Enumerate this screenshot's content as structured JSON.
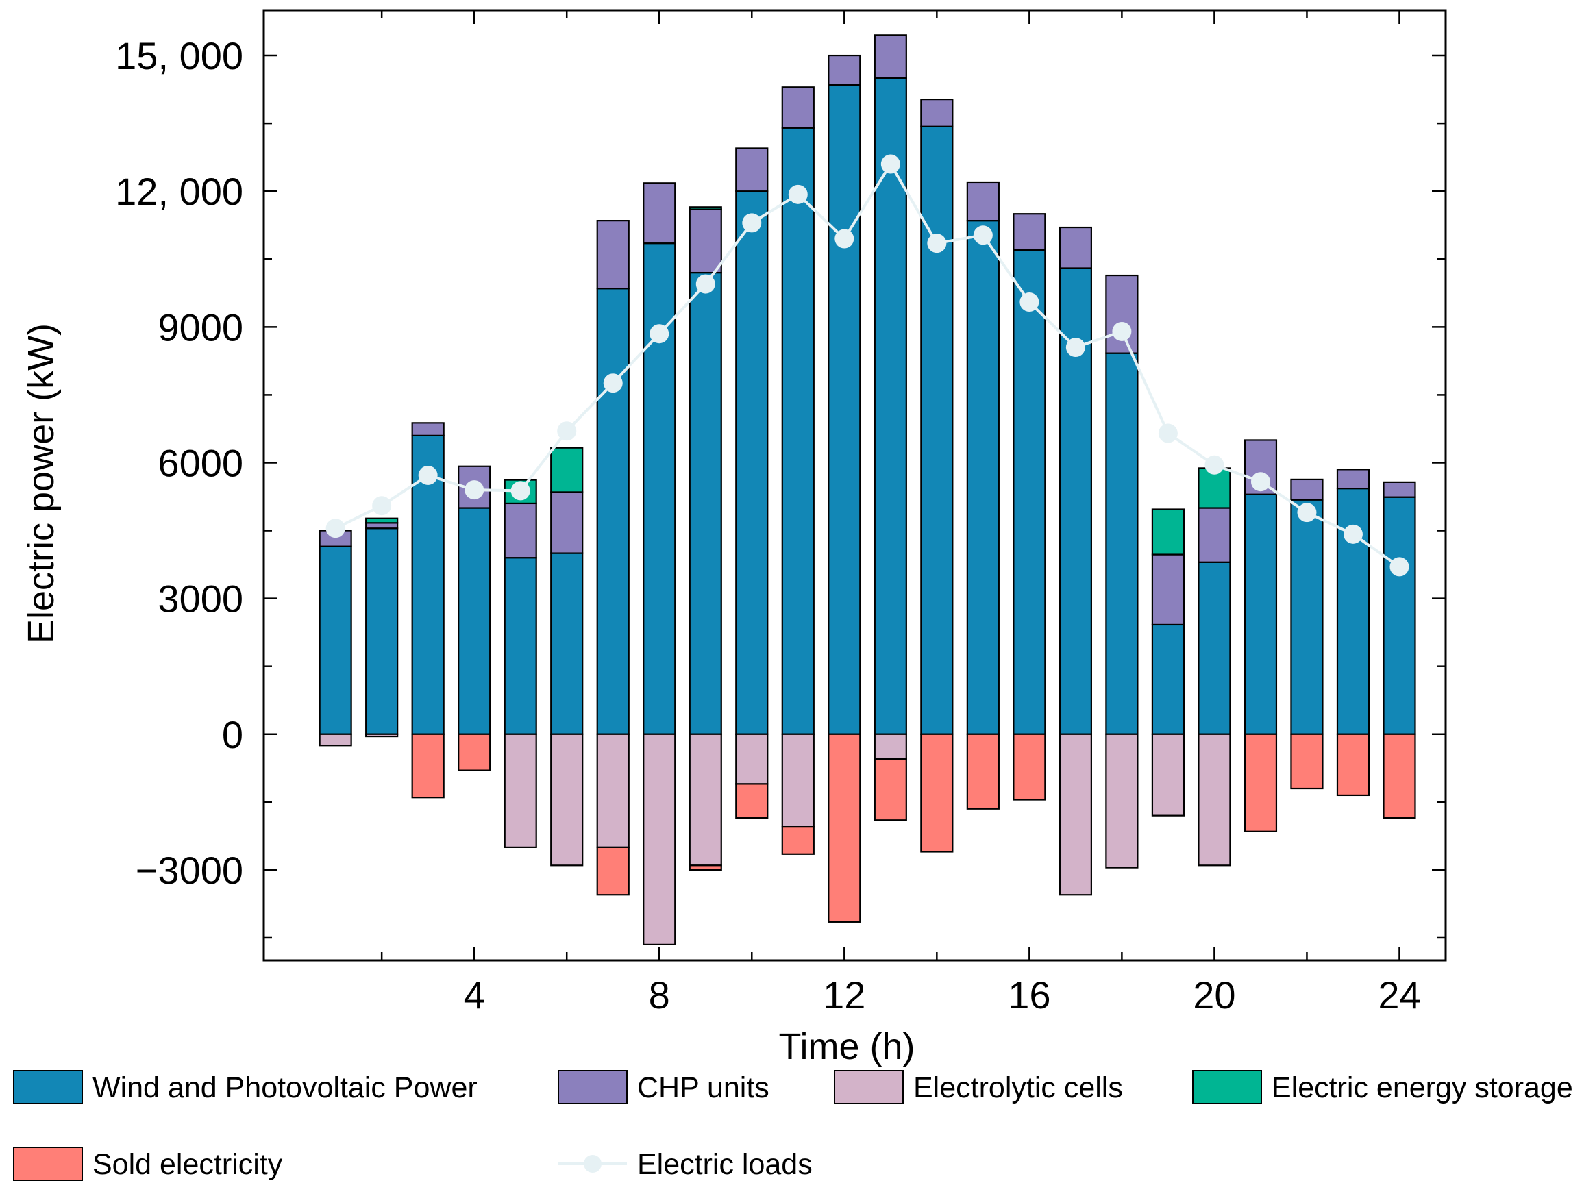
{
  "chart_data": {
    "type": "bar",
    "xlabel": "Time (h)",
    "ylabel": "Electric power (kW)",
    "x": [
      1,
      2,
      3,
      4,
      5,
      6,
      7,
      8,
      9,
      10,
      11,
      12,
      13,
      14,
      15,
      16,
      17,
      18,
      19,
      20,
      21,
      22,
      23,
      24
    ],
    "xticks": [
      4,
      8,
      12,
      16,
      20,
      24
    ],
    "xlim": [
      -0.55,
      25.0
    ],
    "yticks": [
      -3000,
      0,
      3000,
      6000,
      9000,
      12000,
      15000
    ],
    "ytick_labels": [
      "−3000",
      "0",
      "3000",
      "6000",
      "9000",
      "12, 000",
      "15, 000"
    ],
    "ylim": [
      -5000,
      16000
    ],
    "stacked": true,
    "series": [
      {
        "name": "Wind and Photovoltaic Power",
        "color": "#1287b6",
        "values": [
          4150,
          4550,
          6600,
          5000,
          3900,
          4000,
          9850,
          10850,
          10200,
          12000,
          13400,
          14350,
          14500,
          13430,
          11350,
          10700,
          10300,
          8420,
          2420,
          3800,
          5300,
          5180,
          5430,
          5240
        ]
      },
      {
        "name": "CHP units",
        "color": "#8b80bd",
        "values": [
          350,
          120,
          280,
          920,
          1200,
          1350,
          1500,
          1330,
          1400,
          950,
          900,
          650,
          950,
          600,
          850,
          800,
          900,
          1720,
          1550,
          1200,
          1200,
          450,
          420,
          330
        ]
      },
      {
        "name": "Electrolytic cells",
        "color": "#d3b3c9",
        "values": [
          -250,
          -50,
          0,
          0,
          -2500,
          -2900,
          -2500,
          -4650,
          -2900,
          -1100,
          -2050,
          0,
          -550,
          0,
          0,
          0,
          -3550,
          -2950,
          -1800,
          -2900,
          0,
          0,
          0,
          0
        ]
      },
      {
        "name": "Electric energy storage",
        "color": "#00b593",
        "values": [
          0,
          100,
          0,
          0,
          520,
          980,
          0,
          0,
          50,
          0,
          0,
          0,
          0,
          0,
          0,
          0,
          0,
          0,
          1000,
          880,
          0,
          0,
          0,
          0
        ]
      },
      {
        "name": "Sold electricity",
        "color": "#ff7f77",
        "values": [
          0,
          0,
          -1400,
          -800,
          0,
          0,
          -1050,
          0,
          -100,
          -750,
          -600,
          -4150,
          -1350,
          -2600,
          -1650,
          -1450,
          0,
          0,
          0,
          0,
          -2150,
          -1200,
          -1350,
          -1850
        ]
      }
    ],
    "line": {
      "name": "Electric loads",
      "color": "#e6f1f4",
      "values": [
        4550,
        5050,
        5720,
        5400,
        5380,
        6700,
        7760,
        8850,
        9950,
        11300,
        11930,
        10950,
        12600,
        10850,
        11030,
        9550,
        8550,
        8900,
        6650,
        5950,
        5580,
        4900,
        4420,
        3700
      ]
    }
  },
  "legend": {
    "items": [
      {
        "label": "Wind and Photovoltaic Power",
        "kind": "box",
        "color": "#1287b6"
      },
      {
        "label": "CHP units",
        "kind": "box",
        "color": "#8b80bd"
      },
      {
        "label": "Electrolytic cells",
        "kind": "box",
        "color": "#d3b3c9"
      },
      {
        "label": "Electric energy storage",
        "kind": "box",
        "color": "#00b593"
      },
      {
        "label": "Sold electricity",
        "kind": "box",
        "color": "#ff7f77"
      },
      {
        "label": "Electric loads",
        "kind": "line",
        "color": "#e6f1f4"
      }
    ]
  }
}
